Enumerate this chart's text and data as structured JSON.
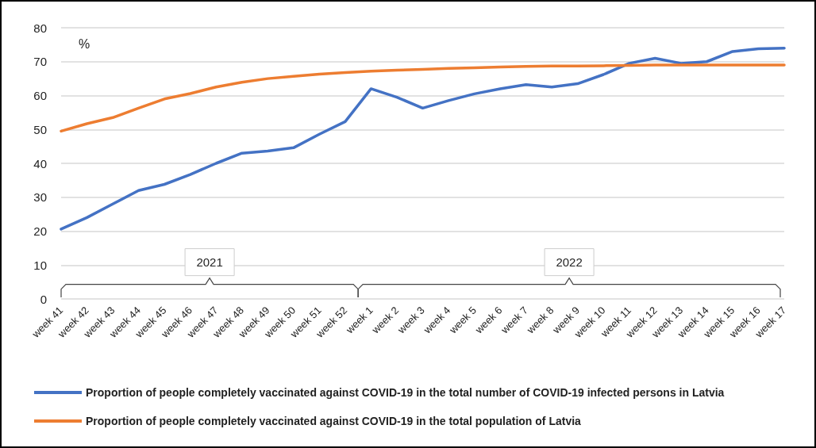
{
  "chart_data": {
    "type": "line",
    "ylabel": "%",
    "categories": [
      "week 41",
      "week 42",
      "week 43",
      "week 44",
      "week 45",
      "week 46",
      "week 47",
      "week 48",
      "week 49",
      "week 50",
      "week 51",
      "week 52",
      "week 1",
      "week 2",
      "week 3",
      "week 4",
      "week 5",
      "week 6",
      "week 7",
      "week 8",
      "week 9",
      "week 10",
      "week 11",
      "week 12",
      "week 13",
      "week 14",
      "week 15",
      "week 16",
      "week 17"
    ],
    "series": [
      {
        "name": "Proportion of people completely vaccinated against COVID-19 in the total number of COVID-19 infected persons in Latvia",
        "color": "#4472c4",
        "values": [
          20.6,
          24,
          28,
          32,
          33.8,
          36.7,
          40,
          43,
          43.6,
          44.6,
          48.6,
          52.3,
          62,
          59.5,
          56.3,
          58.5,
          60.5,
          62,
          63.2,
          62.5,
          63.5,
          66.2,
          69.5,
          71,
          69.5,
          70,
          73,
          73.8,
          74
        ]
      },
      {
        "name": "Proportion of people completely vaccinated against COVID-19 in the total population of Latvia",
        "color": "#ed7d31",
        "values": [
          49.5,
          51.7,
          53.5,
          56.3,
          59,
          60.6,
          62.5,
          63.9,
          65,
          65.7,
          66.3,
          66.8,
          67.2,
          67.5,
          67.7,
          68,
          68.2,
          68.4,
          68.6,
          68.7,
          68.7,
          68.8,
          68.9,
          69,
          69,
          69,
          69,
          69,
          69
        ]
      }
    ],
    "ylim": [
      0,
      80
    ],
    "yticks": [
      0,
      10,
      20,
      30,
      40,
      50,
      60,
      70,
      80
    ],
    "grid": "y",
    "legend": "bottom left",
    "marker": "none",
    "line_style": "solid",
    "annotations": [
      "2021",
      "2022"
    ]
  }
}
